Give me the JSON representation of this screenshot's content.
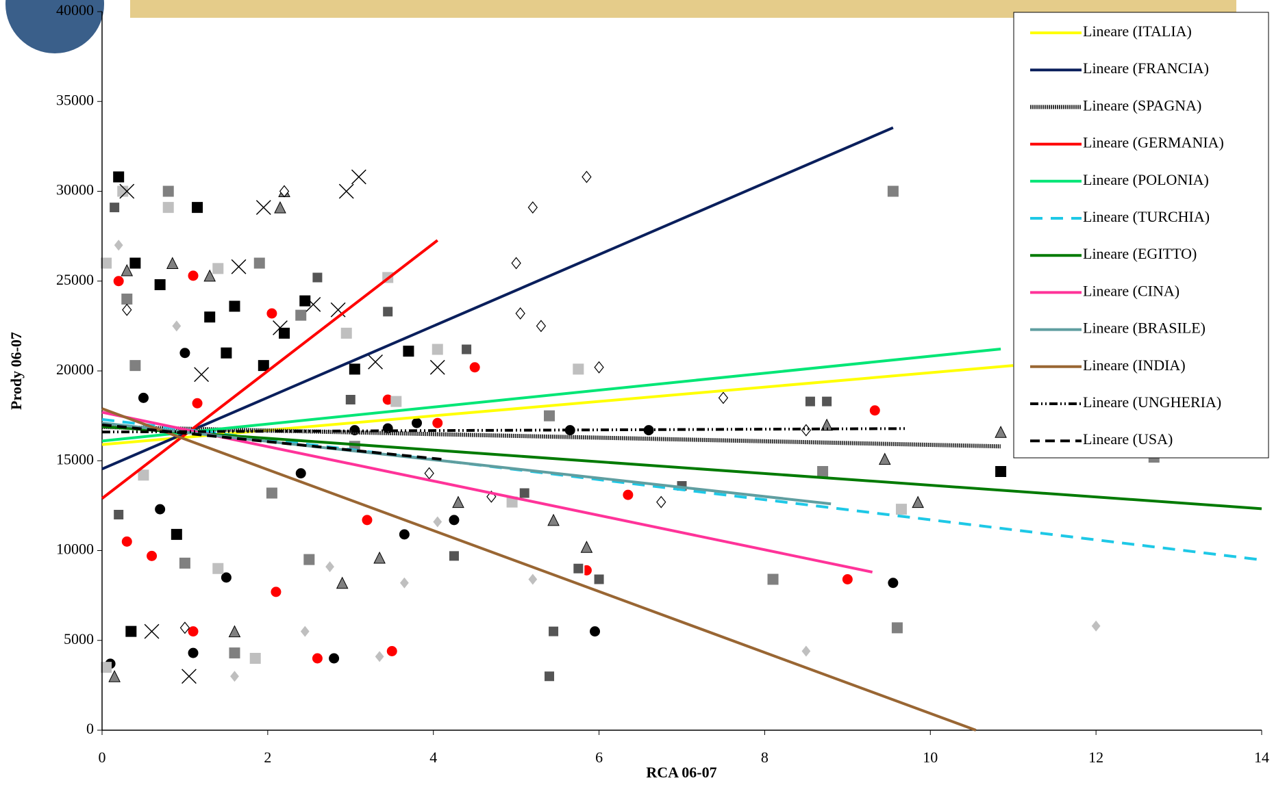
{
  "chart_data": {
    "type": "scatter",
    "x_label": "RCA 06-07",
    "y_label": "Prody 06-07",
    "xlim": [
      0,
      14
    ],
    "xticks": [
      0,
      2,
      4,
      6,
      8,
      10,
      12,
      14
    ],
    "ylim": [
      0,
      40000
    ],
    "yticks": [
      0,
      5000,
      10000,
      15000,
      20000,
      25000,
      30000,
      35000,
      40000
    ],
    "series": [
      {
        "name": "Lineare (ITALIA)",
        "color": "#ffff00",
        "dash": "none",
        "x": [
          0,
          11
        ],
        "values": [
          15900,
          20300
        ]
      },
      {
        "name": "Lineare (FRANCIA)",
        "color": "#0a1f5c",
        "dash": "none",
        "x": [
          0,
          9.55
        ],
        "values": [
          14540,
          33540
        ]
      },
      {
        "name": "Lineare (SPAGNA)",
        "color": "#333333",
        "dash": "2,1",
        "x": [
          0,
          10.85
        ],
        "values": [
          16880,
          15800
        ]
      },
      {
        "name": "Lineare (GERMANIA)",
        "color": "#ff0000",
        "dash": "none",
        "x": [
          0,
          4.05
        ],
        "values": [
          12900,
          27270
        ]
      },
      {
        "name": "Lineare (POLONIA)",
        "color": "#00e676",
        "dash": "none",
        "x": [
          0,
          10.85
        ],
        "values": [
          16100,
          21220
        ]
      },
      {
        "name": "Lineare (TURCHIA)",
        "color": "#1ec8e6",
        "dash": "18,12",
        "x": [
          0,
          14
        ],
        "values": [
          17300,
          9480
        ]
      },
      {
        "name": "Lineare (EGITTO)",
        "color": "#007a00",
        "dash": "none",
        "x": [
          0,
          14
        ],
        "values": [
          16900,
          12330
        ]
      },
      {
        "name": "Lineare (CINA)",
        "color": "#ff3399",
        "dash": "none",
        "x": [
          0,
          9.3
        ],
        "values": [
          17700,
          8800
        ]
      },
      {
        "name": "Lineare (BRASILE)",
        "color": "#5f9ea0",
        "dash": "none",
        "x": [
          0,
          8.8
        ],
        "values": [
          17100,
          12600
        ]
      },
      {
        "name": "Lineare (INDIA)",
        "color": "#996633",
        "dash": "none",
        "x": [
          0,
          10.55
        ],
        "values": [
          17900,
          0
        ]
      },
      {
        "name": "Lineare (UNGHERIA)",
        "color": "#000000",
        "dash": "12,4,2,4,2,4",
        "x": [
          0,
          9.7
        ],
        "values": [
          16600,
          16790
        ]
      },
      {
        "name": "Lineare (USA)",
        "color": "#000000",
        "dash": "14,8",
        "x": [
          0,
          4.1
        ],
        "values": [
          17000,
          15080
        ]
      }
    ],
    "points": [
      {
        "marker": "circle",
        "color": "#000000",
        "x": [
          0.5,
          1.0,
          1.5,
          3.05,
          3.45,
          3.8,
          4.25,
          5.65,
          6.6,
          9.55,
          5.95,
          2.8,
          1.1,
          0.1,
          3.65,
          2.4,
          0.7
        ],
        "values": [
          18500,
          21000,
          8500,
          16700,
          16800,
          17100,
          11700,
          16700,
          16700,
          8200,
          5500,
          4000,
          4300,
          3700,
          10900,
          14300,
          12300
        ]
      },
      {
        "marker": "circle",
        "color": "#ff0000",
        "x": [
          0.2,
          1.1,
          1.15,
          2.05,
          3.2,
          3.45,
          4.5,
          5.85,
          6.35,
          9.0,
          9.33,
          2.6,
          3.5,
          1.1,
          0.3,
          0.6,
          2.1,
          4.05
        ],
        "values": [
          25000,
          25300,
          18200,
          23200,
          11700,
          18400,
          20200,
          8900,
          13100,
          8400,
          17800,
          4000,
          4400,
          5500,
          10500,
          9700,
          7700,
          17100
        ]
      },
      {
        "marker": "square",
        "color": "#808080",
        "x": [
          0.3,
          0.8,
          1.9,
          2.4,
          3.05,
          5.4,
          8.7,
          9.6,
          8.1,
          9.55,
          12.7,
          1.6,
          2.05,
          0.4,
          1.0,
          2.5
        ],
        "values": [
          24000,
          30000,
          26000,
          23100,
          15800,
          17500,
          14400,
          5700,
          8400,
          30000,
          15200,
          4300,
          13200,
          20300,
          9300,
          9500
        ]
      },
      {
        "marker": "square",
        "color": "#000000",
        "x": [
          0.2,
          0.4,
          0.7,
          1.15,
          1.6,
          1.95,
          2.45,
          3.05,
          3.7,
          10.85,
          0.35,
          1.3,
          2.2,
          0.9,
          1.5
        ],
        "values": [
          30800,
          26000,
          24800,
          29100,
          23600,
          20300,
          23900,
          20100,
          21100,
          14400,
          5500,
          23000,
          22100,
          10900,
          21000
        ]
      },
      {
        "marker": "square",
        "color": "#bfbfbf",
        "x": [
          0.05,
          0.25,
          0.8,
          1.4,
          1.85,
          3.45,
          4.05,
          5.75,
          4.95,
          9.65,
          2.95,
          0.05,
          1.4,
          3.55,
          0.5
        ],
        "values": [
          26000,
          30000,
          29100,
          25700,
          4000,
          25200,
          21200,
          20100,
          12700,
          12300,
          22100,
          3500,
          9000,
          18300,
          14200
        ]
      },
      {
        "marker": "triangle",
        "color": "#808080",
        "x": [
          0.3,
          0.85,
          1.3,
          2.2,
          2.15,
          3.35,
          4.3,
          5.85,
          8.75,
          9.85,
          10.85,
          9.45,
          2.9,
          1.6,
          0.15,
          5.45
        ],
        "values": [
          25600,
          26000,
          25300,
          30000,
          29100,
          9600,
          12700,
          10200,
          17000,
          12700,
          16600,
          15100,
          8200,
          5500,
          3000,
          11700
        ]
      },
      {
        "marker": "diamond",
        "color": "#bfbfbf",
        "x": [
          0.2,
          1.6,
          2.45,
          2.75,
          3.35,
          4.05,
          5.2,
          8.5,
          12.0,
          0.9,
          3.65
        ],
        "values": [
          27000,
          3000,
          5500,
          9100,
          4100,
          11600,
          8400,
          4400,
          5800,
          22500,
          8200
        ]
      },
      {
        "marker": "open-diamond",
        "color": "#ffffff",
        "x": [
          5.0,
          5.3,
          5.85,
          5.2,
          5.05,
          6.0,
          7.5,
          8.5,
          6.75,
          4.7,
          3.95,
          0.3,
          2.2,
          1.0
        ],
        "values": [
          26000,
          22500,
          30800,
          29100,
          23200,
          20200,
          18500,
          16700,
          12700,
          13000,
          14300,
          23400,
          30000,
          5700
        ]
      },
      {
        "marker": "cross",
        "color": "#000000",
        "x": [
          0.3,
          1.05,
          1.65,
          1.95,
          2.55,
          2.85,
          2.95,
          3.1,
          3.3,
          4.05,
          0.6,
          1.2,
          2.15
        ],
        "values": [
          30000,
          3000,
          25800,
          29100,
          23700,
          23400,
          30000,
          30800,
          20500,
          20200,
          5500,
          19800,
          22400
        ]
      },
      {
        "marker": "square-plus",
        "color": "#555555",
        "x": [
          0.15,
          2.6,
          3.45,
          4.4,
          4.25,
          5.1,
          5.4,
          5.45,
          5.75,
          6.0,
          7.0,
          8.55,
          8.75,
          3.0,
          0.2
        ],
        "values": [
          29100,
          25200,
          23300,
          21200,
          9700,
          13200,
          3000,
          5500,
          9000,
          8400,
          13600,
          18300,
          18300,
          18400,
          12000
        ]
      }
    ]
  }
}
